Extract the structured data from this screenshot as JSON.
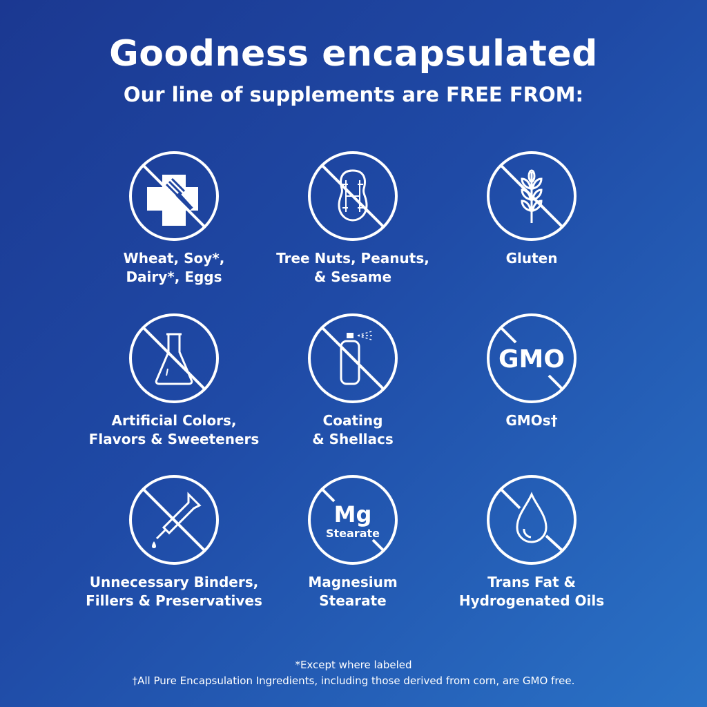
{
  "header": {
    "title": "Goodness encapsulated",
    "subtitle": "Our line of supplements are FREE FROM:"
  },
  "items": [
    {
      "icon": "allergen-cross-fork-icon",
      "line1": "Wheat, Soy*,",
      "line2": "Dairy*, Eggs"
    },
    {
      "icon": "peanut-icon",
      "line1": "Tree Nuts, Peanuts,",
      "line2": "& Sesame"
    },
    {
      "icon": "wheat-icon",
      "line1": "Gluten",
      "line2": ""
    },
    {
      "icon": "flask-icon",
      "line1": "Artificial Colors,",
      "line2": "Flavors & Sweeteners"
    },
    {
      "icon": "spray-can-icon",
      "line1": "Coating",
      "line2": "& Shellacs"
    },
    {
      "icon": "gmo-icon",
      "icon_text": "GMO",
      "line1": "GMOs†",
      "line2": ""
    },
    {
      "icon": "dropper-icon",
      "line1": "Unnecessary Binders,",
      "line2": "Fillers & Preservatives"
    },
    {
      "icon": "mg-stearate-icon",
      "icon_text": "Mg",
      "icon_text2": "Stearate",
      "line1": "Magnesium",
      "line2": "Stearate"
    },
    {
      "icon": "oil-drop-icon",
      "line1": "Trans Fat &",
      "line2": "Hydrogenated Oils"
    }
  ],
  "footnotes": {
    "line1": "*Except where labeled",
    "line2": "†All Pure Encapsulation Ingredients, including those derived from corn, are GMO free."
  },
  "colors": {
    "background_start": "#1b3891",
    "background_end": "#2a72c6",
    "foreground": "#ffffff"
  }
}
